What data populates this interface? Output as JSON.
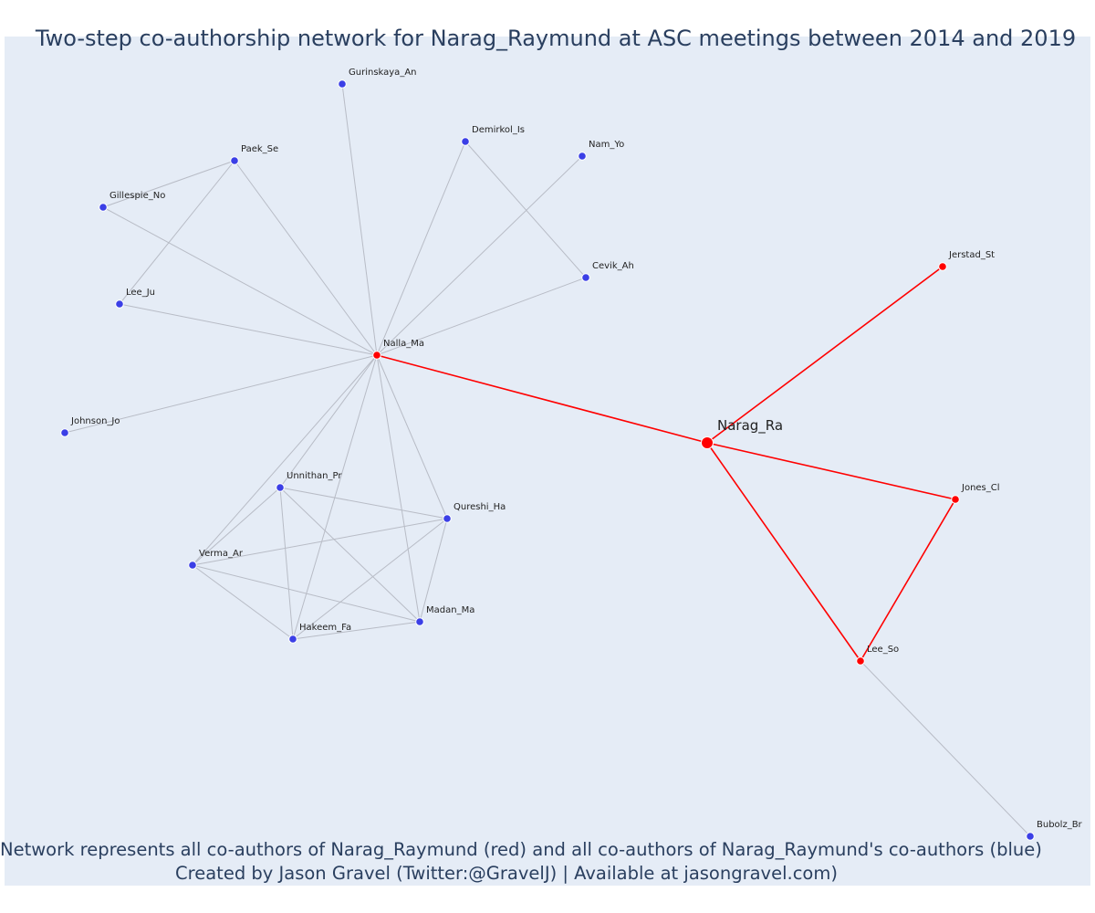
{
  "title": "Two-step co-authorship network for Narag_Raymund at ASC meetings between 2014 and 2019",
  "caption": {
    "line1": "Network represents all co-authors of Narag_Raymund (red) and all co-authors of Narag_Raymund's co-authors (blue)",
    "line2": "Created by Jason Gravel (Twitter:@GravelJ) | Available at jasongravel.com)"
  },
  "colors": {
    "first_step": "#ff0000",
    "second_step": "#3b3fe6",
    "edge_gray": "#b8bcc6",
    "background": "#e5ecf6"
  },
  "nodes": [
    {
      "id": "Narag_Ra",
      "label": "Narag_Ra",
      "group": "focal"
    },
    {
      "id": "Nalla_Ma",
      "label": "Nalla_Ma",
      "group": "red"
    },
    {
      "id": "Jerstad_St",
      "label": "Jerstad_St",
      "group": "red"
    },
    {
      "id": "Jones_Cl",
      "label": "Jones_Cl",
      "group": "red"
    },
    {
      "id": "Lee_So",
      "label": "Lee_So",
      "group": "red"
    },
    {
      "id": "Gurinskaya_An",
      "label": "Gurinskaya_An",
      "group": "blue"
    },
    {
      "id": "Demirkol_Is",
      "label": "Demirkol_Is",
      "group": "blue"
    },
    {
      "id": "Nam_Yo",
      "label": "Nam_Yo",
      "group": "blue"
    },
    {
      "id": "Paek_Se",
      "label": "Paek_Se",
      "group": "blue"
    },
    {
      "id": "Gillespie_No",
      "label": "Gillespie_No",
      "group": "blue"
    },
    {
      "id": "Cevik_Ah",
      "label": "Cevik_Ah",
      "group": "blue"
    },
    {
      "id": "Lee_Ju",
      "label": "Lee_Ju",
      "group": "blue"
    },
    {
      "id": "Johnson_Jo",
      "label": "Johnson_Jo",
      "group": "blue"
    },
    {
      "id": "Unnithan_Pr",
      "label": "Unnithan_Pr",
      "group": "blue"
    },
    {
      "id": "Qureshi_Ha",
      "label": "Qureshi_Ha",
      "group": "blue"
    },
    {
      "id": "Verma_Ar",
      "label": "Verma_Ar",
      "group": "blue"
    },
    {
      "id": "Madan_Ma",
      "label": "Madan_Ma",
      "group": "blue"
    },
    {
      "id": "Hakeem_Fa",
      "label": "Hakeem_Fa",
      "group": "blue"
    },
    {
      "id": "Bubolz_Br",
      "label": "Bubolz_Br",
      "group": "blue"
    }
  ],
  "edges": [
    {
      "source": "Narag_Ra",
      "target": "Nalla_Ma",
      "style": "red"
    },
    {
      "source": "Narag_Ra",
      "target": "Jerstad_St",
      "style": "red"
    },
    {
      "source": "Narag_Ra",
      "target": "Jones_Cl",
      "style": "red"
    },
    {
      "source": "Narag_Ra",
      "target": "Lee_So",
      "style": "red"
    },
    {
      "source": "Jones_Cl",
      "target": "Lee_So",
      "style": "red"
    },
    {
      "source": "Lee_So",
      "target": "Bubolz_Br",
      "style": "gray"
    },
    {
      "source": "Nalla_Ma",
      "target": "Gurinskaya_An",
      "style": "gray"
    },
    {
      "source": "Nalla_Ma",
      "target": "Demirkol_Is",
      "style": "gray"
    },
    {
      "source": "Nalla_Ma",
      "target": "Nam_Yo",
      "style": "gray"
    },
    {
      "source": "Nalla_Ma",
      "target": "Paek_Se",
      "style": "gray"
    },
    {
      "source": "Nalla_Ma",
      "target": "Gillespie_No",
      "style": "gray"
    },
    {
      "source": "Nalla_Ma",
      "target": "Cevik_Ah",
      "style": "gray"
    },
    {
      "source": "Nalla_Ma",
      "target": "Lee_Ju",
      "style": "gray"
    },
    {
      "source": "Nalla_Ma",
      "target": "Johnson_Jo",
      "style": "gray"
    },
    {
      "source": "Nalla_Ma",
      "target": "Unnithan_Pr",
      "style": "gray"
    },
    {
      "source": "Nalla_Ma",
      "target": "Qureshi_Ha",
      "style": "gray"
    },
    {
      "source": "Nalla_Ma",
      "target": "Verma_Ar",
      "style": "gray"
    },
    {
      "source": "Nalla_Ma",
      "target": "Madan_Ma",
      "style": "gray"
    },
    {
      "source": "Nalla_Ma",
      "target": "Hakeem_Fa",
      "style": "gray"
    },
    {
      "source": "Paek_Se",
      "target": "Gillespie_No",
      "style": "gray"
    },
    {
      "source": "Paek_Se",
      "target": "Lee_Ju",
      "style": "gray"
    },
    {
      "source": "Demirkol_Is",
      "target": "Cevik_Ah",
      "style": "gray"
    },
    {
      "source": "Unnithan_Pr",
      "target": "Qureshi_Ha",
      "style": "gray"
    },
    {
      "source": "Unnithan_Pr",
      "target": "Verma_Ar",
      "style": "gray"
    },
    {
      "source": "Unnithan_Pr",
      "target": "Madan_Ma",
      "style": "gray"
    },
    {
      "source": "Unnithan_Pr",
      "target": "Hakeem_Fa",
      "style": "gray"
    },
    {
      "source": "Qureshi_Ha",
      "target": "Verma_Ar",
      "style": "gray"
    },
    {
      "source": "Qureshi_Ha",
      "target": "Madan_Ma",
      "style": "gray"
    },
    {
      "source": "Qureshi_Ha",
      "target": "Hakeem_Fa",
      "style": "gray"
    },
    {
      "source": "Verma_Ar",
      "target": "Madan_Ma",
      "style": "gray"
    },
    {
      "source": "Verma_Ar",
      "target": "Hakeem_Fa",
      "style": "gray"
    },
    {
      "source": "Madan_Ma",
      "target": "Hakeem_Fa",
      "style": "gray"
    }
  ]
}
